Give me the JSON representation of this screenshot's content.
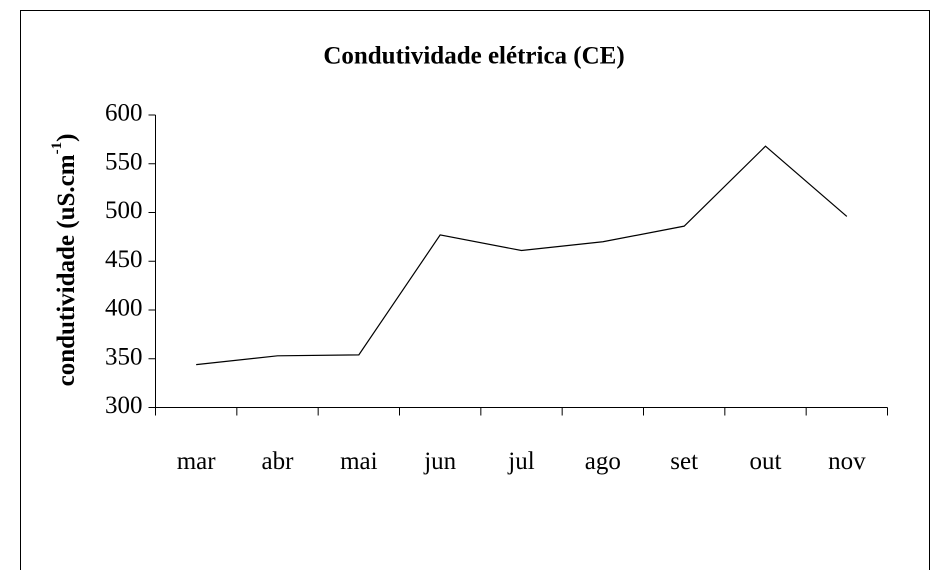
{
  "chart_data": {
    "type": "line",
    "title": "Condutividade elétrica (CE)",
    "ylabel": [
      "condutividade (uS.cm",
      "-1",
      ")"
    ],
    "categories": [
      "mar",
      "abr",
      "mai",
      "jun",
      "jul",
      "ago",
      "set",
      "out",
      "nov"
    ],
    "values": [
      344,
      353,
      354,
      477,
      461,
      470,
      486,
      568,
      496
    ],
    "color": "#000000",
    "ylim": [
      300,
      600
    ],
    "yticks": [
      300,
      350,
      400,
      450,
      500,
      550,
      600
    ],
    "grid": false
  }
}
